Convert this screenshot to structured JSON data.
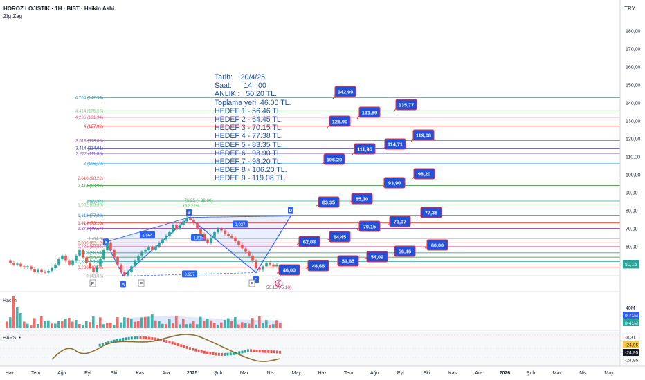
{
  "header": {
    "title": "HOROZ LOJISTIK · 1H · BIST · Heikin Ashi",
    "indicator": "Zig Zag",
    "currency": "TRY"
  },
  "info_block": [
    "Tarih:    20/4/25",
    "Saat:      14 : 00",
    "ANLIK :   50.20 TL.",
    "Toplama yeri: 46.00 TL.",
    "HEDEF 1 - 56.46 TL.",
    "HEDEF 2 - 64.45 TL.",
    "HEDEF 3 - 70.15 TL.",
    "HEDEF 4 - 77.38 TL.",
    "HEDEF 5 - 83.35 TL.",
    "HEDEF 6 - 93.90 TL.",
    "HEDEF 7 - 98.20 TL.",
    "HEDEF 8 - 106.20 TL.",
    "HEDEF 9 - 119.08 TL."
  ],
  "colors": {
    "up": "#26a69a",
    "down": "#ef5350",
    "target_box": "#2250d8",
    "target_border": "#ff2b2b",
    "pattern": "#2962ff",
    "text_blue": "#1e4fa0",
    "osc_line": "#8b6f2f"
  },
  "chart_data": {
    "type": "candlestick",
    "price_axis": {
      "ticks": [
        "180,00",
        "170,00",
        "160,00",
        "150,00",
        "140,00",
        "130,00",
        "120,00",
        "110,00",
        "100,00",
        "90,00",
        "80,00",
        "70,00",
        "60,00"
      ],
      "range": [
        43,
        190
      ],
      "last_price_label": "50,15"
    },
    "time_axis": [
      "Haz",
      "Tem",
      "Ağu",
      "Eyl",
      "Eki",
      "Kas",
      "Ara",
      "2025",
      "Şub",
      "Mar",
      "Nis",
      "May",
      "Haz",
      "Tem",
      "Ağu",
      "Eyl",
      "Eki",
      "Kas",
      "Ara",
      "2026",
      "Şub",
      "Mar",
      "Nis",
      "May"
    ],
    "fib_levels": [
      {
        "label": "4,764 (142,94)",
        "value": 142.94,
        "color": "#26a69a"
      },
      {
        "label": "4,414 (135,65)",
        "value": 135.65,
        "color": "#81c784"
      },
      {
        "label": "4,236 (131,94)",
        "value": 131.94,
        "color": "#f06292"
      },
      {
        "label": "4 (127,02)",
        "value": 127.02,
        "color": "#e53935"
      },
      {
        "label": "3,618 (119,06)",
        "value": 119.06,
        "color": "#ab47bc"
      },
      {
        "label": "3,414 (114,81)",
        "value": 114.81,
        "color": "#3949ab"
      },
      {
        "label": "3,272 (111,85)",
        "value": 111.85,
        "color": "#7e57c2"
      },
      {
        "label": "3 (106,18)",
        "value": 106.18,
        "color": "#42a5f5"
      },
      {
        "label": "2,618 (98,22)",
        "value": 98.22,
        "color": "#ef5350"
      },
      {
        "label": "2,414 (93,97)",
        "value": 93.97,
        "color": "#43a047"
      },
      {
        "label": "2 (85,34)",
        "value": 85.34,
        "color": "#26a69a"
      },
      {
        "label": "1,902 (83,30)",
        "value": 83.3,
        "color": "#81c784"
      },
      {
        "label": "1,618 (77,38)",
        "value": 77.38,
        "color": "#1e88e5"
      },
      {
        "label": "1,414 (73,13)",
        "value": 73.13,
        "color": "#e53935"
      },
      {
        "label": "1,272 (70,17)",
        "value": 70.17,
        "color": "#8e24aa"
      },
      {
        "label": "1 (64,5)",
        "value": 64.5,
        "color": "#9e9e9e"
      },
      {
        "label": "0,886 (62,12)",
        "value": 62.12,
        "color": "#ef5350"
      },
      {
        "label": "0,786 (60,04)",
        "value": 60.04,
        "color": "#f06292"
      },
      {
        "label": "0,618 (56,54)",
        "value": 56.54,
        "color": "#26a69a"
      },
      {
        "label": "0,5 (54,08)",
        "value": 54.08,
        "color": "#43a047"
      },
      {
        "label": "0,382 (51,62)",
        "value": 51.62,
        "color": "#26a69a"
      },
      {
        "label": "0,236 (48,58)",
        "value": 48.58,
        "color": "#ef5350"
      },
      {
        "label": "0 (43,65)",
        "value": 43.65,
        "color": "#9e9e9e"
      }
    ],
    "targets": [
      {
        "label": "46,00",
        "value": 46.0
      },
      {
        "label": "48,66",
        "value": 48.66
      },
      {
        "label": "51,65",
        "value": 51.65
      },
      {
        "label": "54,09",
        "value": 54.09
      },
      {
        "label": "56,46",
        "value": 56.46
      },
      {
        "label": "60,00",
        "value": 60.0
      },
      {
        "label": "62,08",
        "value": 62.08
      },
      {
        "label": "64,45",
        "value": 64.45
      },
      {
        "label": "70,15",
        "value": 70.15
      },
      {
        "label": "73,07",
        "value": 73.07
      },
      {
        "label": "77,38",
        "value": 77.38
      },
      {
        "label": "83,35",
        "value": 83.35
      },
      {
        "label": "85,30",
        "value": 85.3
      },
      {
        "label": "93,90",
        "value": 93.9
      },
      {
        "label": "98,20",
        "value": 98.2
      },
      {
        "label": "106,20",
        "value": 106.2
      },
      {
        "label": "111,95",
        "value": 111.95
      },
      {
        "label": "114,71",
        "value": 114.71
      },
      {
        "label": "119,08",
        "value": 119.08
      },
      {
        "label": "126,90",
        "value": 126.9
      },
      {
        "label": "131,89",
        "value": 131.89
      },
      {
        "label": "135,77",
        "value": 135.77
      },
      {
        "label": "142,99",
        "value": 142.99
      }
    ],
    "harmonic_points": [
      {
        "label": "X",
        "value": 62.5
      },
      {
        "label": "A",
        "value": 43.6
      },
      {
        "label": "B",
        "value": 76.25
      },
      {
        "label": "C",
        "value": 45.5
      },
      {
        "label": "D",
        "value": 77.0
      }
    ],
    "harmonic_ratios": [
      "1,564",
      "1,61b",
      "1,037",
      "0,937"
    ],
    "swing_annotations": [
      "76.25 (+32.60)",
      "132.22%",
      "50.15 (-5.10)"
    ],
    "volume": {
      "label": "Hacim",
      "tick": "40M",
      "value_labels": [
        "9,71M",
        "8,41M"
      ]
    },
    "oscillator": {
      "label": "HARSI",
      "value_labels": [
        "-8,31",
        "-24,95",
        "-24,95",
        "-24,95"
      ]
    }
  }
}
